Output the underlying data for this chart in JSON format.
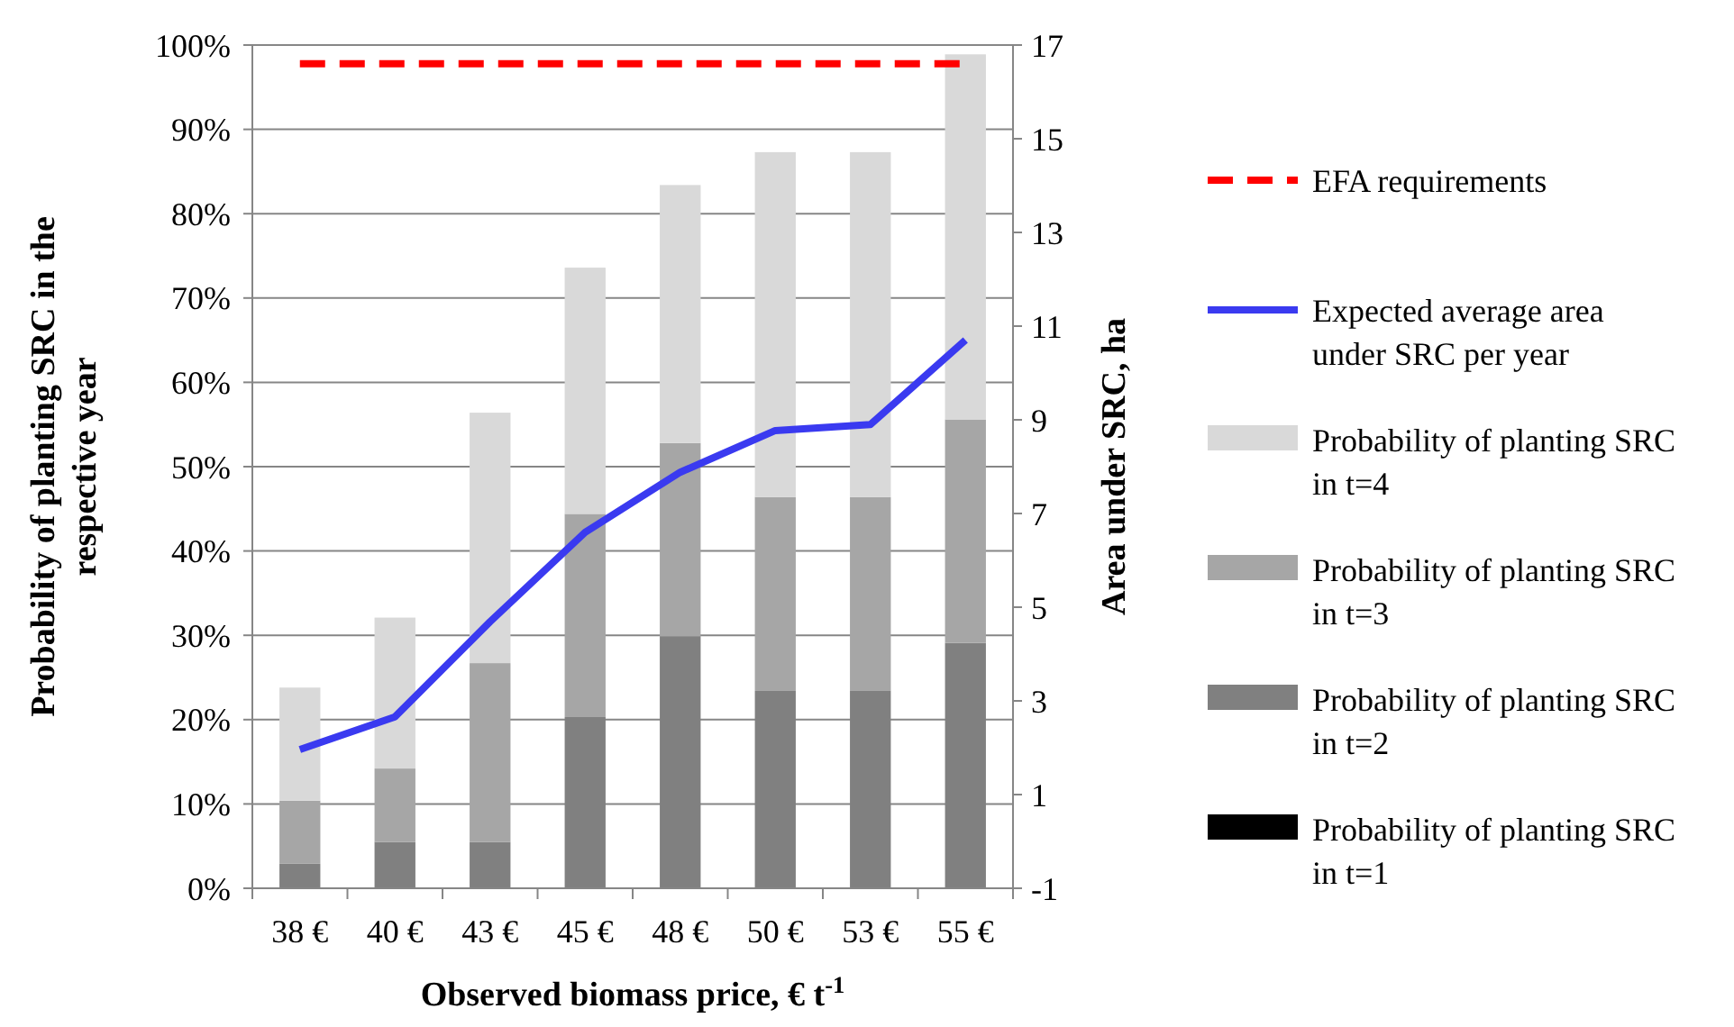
{
  "chart_data": {
    "type": "bar",
    "stacked": true,
    "xlabel": "Observed biomass price, € t$^{-1}$",
    "ylabel": "Probability of planting SRC in the respective year",
    "y2label": "Area under SRC, ha",
    "categories": [
      "38 €",
      "40 €",
      "43 €",
      "45 €",
      "48 €",
      "50 €",
      "53 €",
      "55 €"
    ],
    "series": [
      {
        "name": "Probability of planting SRC in t=1",
        "color": "#000000",
        "values": [
          0,
          0,
          0,
          0,
          0,
          0,
          0,
          0
        ]
      },
      {
        "name": "Probability of planting SRC in t=2",
        "color": "#808080",
        "values": [
          2.9,
          5.5,
          5.5,
          20.3,
          29.9,
          23.4,
          23.4,
          29.1
        ]
      },
      {
        "name": "Probability of planting SRC in t=3",
        "color": "#a6a6a6",
        "values": [
          7.5,
          8.7,
          21.2,
          24.1,
          22.9,
          23.0,
          23.0,
          26.5
        ]
      },
      {
        "name": "Probability of planting SRC in t=4",
        "color": "#d9d9d9",
        "values": [
          13.4,
          17.9,
          29.7,
          29.2,
          30.6,
          40.9,
          40.9,
          43.3
        ]
      },
      {
        "name": "Expected average area under SRC per year",
        "type": "line",
        "axis": "y2",
        "color": "#3a3af0",
        "values": [
          1.96,
          2.66,
          4.69,
          6.6,
          7.88,
          8.77,
          8.9,
          10.7
        ]
      },
      {
        "name": "EFA requirements",
        "type": "line",
        "axis": "y2",
        "line_style": "dashed",
        "color": "#ff0000",
        "values": [
          16.6,
          16.6,
          16.6,
          16.6,
          16.6,
          16.6,
          16.6,
          16.6
        ]
      }
    ],
    "ylim": [
      0,
      100
    ],
    "yticks": [
      {
        "value": 0,
        "label": "0%"
      },
      {
        "value": 10,
        "label": "10%"
      },
      {
        "value": 20,
        "label": "20%"
      },
      {
        "value": 30,
        "label": "30%"
      },
      {
        "value": 40,
        "label": "40%"
      },
      {
        "value": 50,
        "label": "50%"
      },
      {
        "value": 60,
        "label": "60%"
      },
      {
        "value": 70,
        "label": "70%"
      },
      {
        "value": 80,
        "label": "80%"
      },
      {
        "value": 90,
        "label": "90%"
      },
      {
        "value": 100,
        "label": "100%"
      }
    ],
    "y2lim": [
      -1,
      17
    ],
    "y2ticks": [
      -1,
      1,
      3,
      5,
      7,
      9,
      11,
      13,
      15,
      17
    ],
    "grid": "y",
    "legend": "right",
    "marker": "none"
  }
}
